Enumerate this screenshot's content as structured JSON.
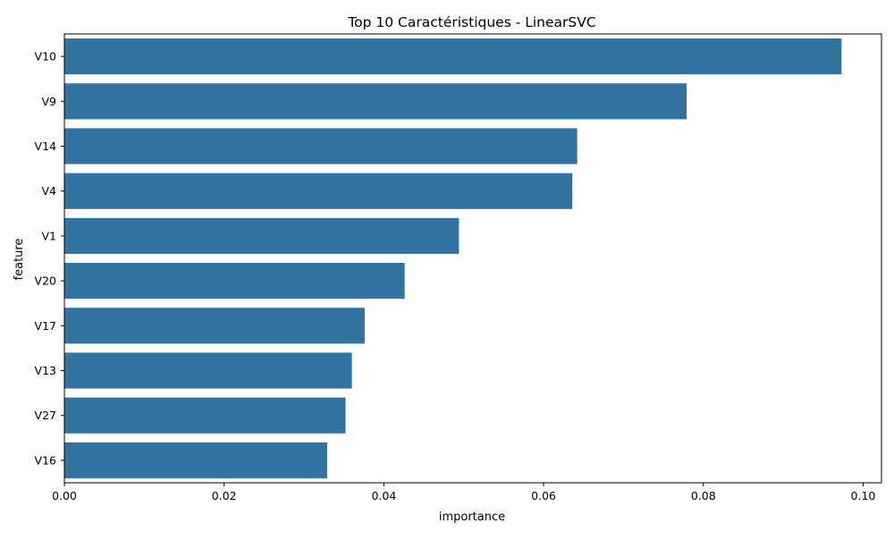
{
  "chart_data": {
    "type": "bar",
    "orientation": "horizontal",
    "title": "Top 10 Caractéristiques - LinearSVC",
    "xlabel": "importance",
    "ylabel": "feature",
    "categories": [
      "V10",
      "V9",
      "V14",
      "V4",
      "V1",
      "V20",
      "V17",
      "V13",
      "V27",
      "V16"
    ],
    "values": [
      0.0973,
      0.0779,
      0.0642,
      0.0636,
      0.0494,
      0.0426,
      0.0376,
      0.036,
      0.0352,
      0.0329
    ],
    "xlim": [
      0,
      0.1023
    ],
    "xticks": [
      0.0,
      0.02,
      0.04,
      0.06,
      0.08,
      0.1
    ],
    "xtick_labels": [
      "0.00",
      "0.02",
      "0.04",
      "0.06",
      "0.08",
      "0.10"
    ],
    "grid": false,
    "bar_color": "#3274a1"
  }
}
